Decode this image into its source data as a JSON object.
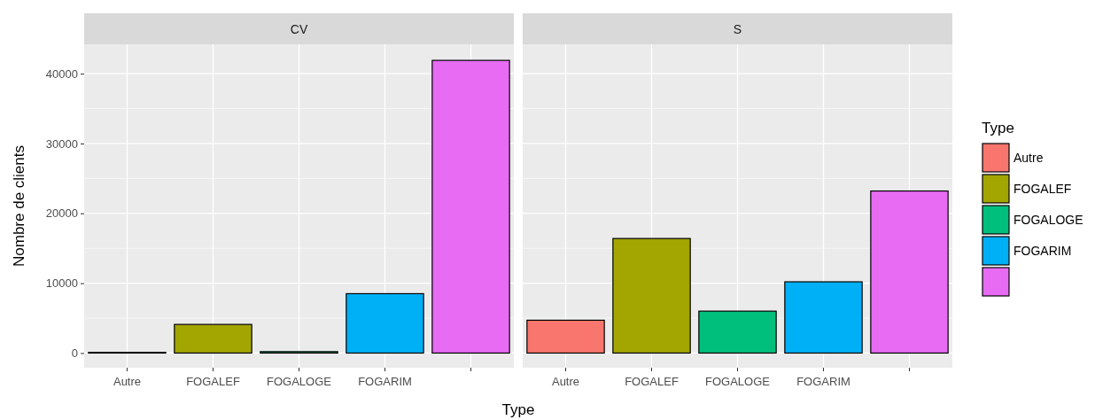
{
  "chart_data": [
    {
      "type": "bar",
      "title": "CV",
      "xlabel": "Type",
      "ylabel": "Nombre de clients",
      "categories": [
        "Autre",
        "FOGALEF",
        "FOGALOGE",
        "FOGARIM",
        null
      ],
      "series": [
        {
          "color": "#f8766d",
          "values": [
            100,
            null,
            null,
            null,
            null
          ]
        },
        {
          "color": "#a3a500",
          "values": [
            null,
            4100,
            null,
            null,
            null
          ]
        },
        {
          "color": "#00bf7d",
          "values": [
            null,
            null,
            200,
            null,
            null
          ]
        },
        {
          "color": "#00b0f6",
          "values": [
            null,
            null,
            null,
            8500,
            null
          ]
        },
        {
          "color": "#e76bf3",
          "values": [
            null,
            null,
            null,
            null,
            41900
          ]
        }
      ],
      "ylim": [
        -2100,
        44200
      ],
      "yticks": [
        0,
        10000,
        20000,
        30000,
        40000
      ],
      "grid": true
    },
    {
      "type": "bar",
      "title": "S",
      "categories": [
        "Autre",
        "FOGALEF",
        "FOGALOGE",
        "FOGARIM",
        null
      ],
      "series": [
        {
          "name": "Autre",
          "color": "#f8766d",
          "values": [
            4700,
            null,
            null,
            null,
            null
          ]
        },
        {
          "name": "FOGALEF",
          "color": "#a3a500",
          "values": [
            null,
            16400,
            null,
            null,
            null
          ]
        },
        {
          "name": "FOGALOGE",
          "color": "#00bf7d",
          "values": [
            null,
            null,
            6000,
            null,
            null
          ]
        },
        {
          "name": "FOGARIM",
          "color": "#00b0f6",
          "values": [
            null,
            null,
            null,
            10200,
            null
          ]
        },
        {
          "color": "#e76bf3",
          "values": [
            null,
            null,
            null,
            null,
            23200
          ]
        }
      ],
      "ylim": [
        -2100,
        44200
      ],
      "yticks": [
        0,
        10000,
        20000,
        30000,
        40000
      ],
      "grid": true,
      "tick_labels": "x",
      "legend": "right",
      "legend_title": "Type"
    }
  ]
}
